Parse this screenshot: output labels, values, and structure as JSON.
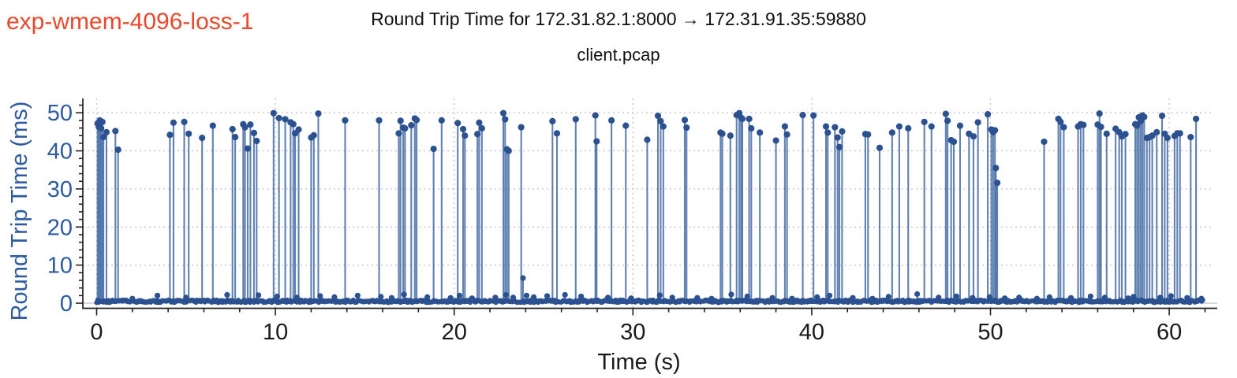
{
  "page": {
    "background": "#ffffff"
  },
  "annotation": {
    "label": "exp-wmem-4096-loss-1",
    "color": "#e8492d"
  },
  "header": {
    "title": "Round Trip Time for 172.31.82.1:8000 → 172.31.91.35:59880",
    "subtitle": "client.pcap"
  },
  "chart_data": {
    "type": "scatter",
    "subtype": "stem",
    "title": "Round Trip Time for 172.31.82.1:8000 → 172.31.91.35:59880",
    "subtitle": "client.pcap",
    "xlabel": "Time (s)",
    "ylabel": "Round Trip Time (ms)",
    "xlim": [
      -0.8,
      62.7
    ],
    "ylim": [
      -1.3,
      53.8
    ],
    "x_ticks": [
      0,
      10,
      20,
      30,
      40,
      50,
      60
    ],
    "y_ticks": [
      0,
      10,
      20,
      30,
      40,
      50
    ],
    "x_minor_step": 2,
    "y_minor_step": 2,
    "grid": true,
    "grid_style": "dotted",
    "legend": "none",
    "colors": {
      "marker": "#2b5190",
      "stem": "#3a61a0",
      "y_axis_text": "#2d5aa2",
      "x_axis_text": "#1a1a1a",
      "grid": "#c6c6c6",
      "spine": "#222222"
    },
    "spikes": [
      [
        0.05,
        47.2
      ],
      [
        0.12,
        46.3
      ],
      [
        0.18,
        48.0
      ],
      [
        0.25,
        45.9
      ],
      [
        0.32,
        47.6
      ],
      [
        0.38,
        43.6
      ],
      [
        0.55,
        44.9
      ],
      [
        1.05,
        45.2
      ],
      [
        1.2,
        40.3
      ],
      [
        4.1,
        44.2
      ],
      [
        4.3,
        47.4
      ],
      [
        4.9,
        47.6
      ],
      [
        5.15,
        44.5
      ],
      [
        5.9,
        43.4
      ],
      [
        6.5,
        46.6
      ],
      [
        7.6,
        45.7
      ],
      [
        7.75,
        43.6
      ],
      [
        8.2,
        47.0
      ],
      [
        8.3,
        46.2
      ],
      [
        8.45,
        40.6
      ],
      [
        8.6,
        46.9
      ],
      [
        8.8,
        44.7
      ],
      [
        8.95,
        42.6
      ],
      [
        9.9,
        49.9
      ],
      [
        10.2,
        48.6
      ],
      [
        10.55,
        48.3
      ],
      [
        10.85,
        47.5
      ],
      [
        11.0,
        47.0
      ],
      [
        11.1,
        44.6
      ],
      [
        11.3,
        45.6
      ],
      [
        12.0,
        43.5
      ],
      [
        12.15,
        44.1
      ],
      [
        12.4,
        49.8
      ],
      [
        13.9,
        48.0
      ],
      [
        15.8,
        48.0
      ],
      [
        16.9,
        44.6
      ],
      [
        17.0,
        47.9
      ],
      [
        17.15,
        46.1
      ],
      [
        17.25,
        45.9
      ],
      [
        17.6,
        46.7
      ],
      [
        17.8,
        48.5
      ],
      [
        17.9,
        48.1
      ],
      [
        18.85,
        40.5
      ],
      [
        19.3,
        48.0
      ],
      [
        20.2,
        47.3
      ],
      [
        20.5,
        45.7
      ],
      [
        20.6,
        44.0
      ],
      [
        21.3,
        44.4
      ],
      [
        21.4,
        47.4
      ],
      [
        21.55,
        45.9
      ],
      [
        22.75,
        49.9
      ],
      [
        22.85,
        48.3
      ],
      [
        22.95,
        40.4
      ],
      [
        23.05,
        40.0
      ],
      [
        23.75,
        46.2
      ],
      [
        25.5,
        47.8
      ],
      [
        25.75,
        44.6
      ],
      [
        26.8,
        48.3
      ],
      [
        27.9,
        49.3
      ],
      [
        27.97,
        42.5
      ],
      [
        28.8,
        48.0
      ],
      [
        29.6,
        46.6
      ],
      [
        30.8,
        42.9
      ],
      [
        31.4,
        49.2
      ],
      [
        31.55,
        47.8
      ],
      [
        31.7,
        46.4
      ],
      [
        32.9,
        48.1
      ],
      [
        33.0,
        46.1
      ],
      [
        34.9,
        44.8
      ],
      [
        35.0,
        44.5
      ],
      [
        35.45,
        44.0
      ],
      [
        35.8,
        49.4
      ],
      [
        35.95,
        49.9
      ],
      [
        36.05,
        48.7
      ],
      [
        36.12,
        48.4
      ],
      [
        36.5,
        48.4
      ],
      [
        36.62,
        45.9
      ],
      [
        37.1,
        44.8
      ],
      [
        38.0,
        42.7
      ],
      [
        38.5,
        46.4
      ],
      [
        38.62,
        44.3
      ],
      [
        39.5,
        49.4
      ],
      [
        40.1,
        49.3
      ],
      [
        40.8,
        46.4
      ],
      [
        40.9,
        44.8
      ],
      [
        41.3,
        46.2
      ],
      [
        41.45,
        43.5
      ],
      [
        41.55,
        41.0
      ],
      [
        41.7,
        45.1
      ],
      [
        43.0,
        44.4
      ],
      [
        43.15,
        44.3
      ],
      [
        43.8,
        40.8
      ],
      [
        44.5,
        44.8
      ],
      [
        44.9,
        46.4
      ],
      [
        45.4,
        45.9
      ],
      [
        46.3,
        47.6
      ],
      [
        46.7,
        46.4
      ],
      [
        47.5,
        49.7
      ],
      [
        47.6,
        47.9
      ],
      [
        47.8,
        42.8
      ],
      [
        47.95,
        42.4
      ],
      [
        48.3,
        46.6
      ],
      [
        48.8,
        44.5
      ],
      [
        49.05,
        43.8
      ],
      [
        49.3,
        47.5
      ],
      [
        49.85,
        49.6
      ],
      [
        50.05,
        45.6
      ],
      [
        50.15,
        44.9
      ],
      [
        50.25,
        45.4
      ],
      [
        50.3,
        35.5
      ],
      [
        50.38,
        31.6
      ],
      [
        53.0,
        42.4
      ],
      [
        53.8,
        48.4
      ],
      [
        53.92,
        47.6
      ],
      [
        54.1,
        46.2
      ],
      [
        54.9,
        46.4
      ],
      [
        55.05,
        47.0
      ],
      [
        55.2,
        46.8
      ],
      [
        56.0,
        46.9
      ],
      [
        56.1,
        49.8
      ],
      [
        56.18,
        46.3
      ],
      [
        56.5,
        44.5
      ],
      [
        57.0,
        45.8
      ],
      [
        57.2,
        44.9
      ],
      [
        57.35,
        43.8
      ],
      [
        57.55,
        44.4
      ],
      [
        58.1,
        47.0
      ],
      [
        58.2,
        46.6
      ],
      [
        58.3,
        48.8
      ],
      [
        58.4,
        47.8
      ],
      [
        58.5,
        49.3
      ],
      [
        58.6,
        48.9
      ],
      [
        58.75,
        43.4
      ],
      [
        58.9,
        43.6
      ],
      [
        59.05,
        44.0
      ],
      [
        59.3,
        44.9
      ],
      [
        59.6,
        49.2
      ],
      [
        59.75,
        44.5
      ],
      [
        59.9,
        43.4
      ],
      [
        60.3,
        43.9
      ],
      [
        60.45,
        44.6
      ],
      [
        60.6,
        44.6
      ],
      [
        61.2,
        43.6
      ],
      [
        61.5,
        48.4
      ]
    ],
    "minor_spikes": [
      [
        2.0,
        1.2
      ],
      [
        3.4,
        2.0
      ],
      [
        5.0,
        1.5
      ],
      [
        7.3,
        2.2
      ],
      [
        9.05,
        2.1
      ],
      [
        10.1,
        1.8
      ],
      [
        11.2,
        1.5
      ],
      [
        12.5,
        1.9
      ],
      [
        13.3,
        1.6
      ],
      [
        14.6,
        2.0
      ],
      [
        15.9,
        1.7
      ],
      [
        16.5,
        1.4
      ],
      [
        17.2,
        2.3
      ],
      [
        18.5,
        1.6
      ],
      [
        19.8,
        1.4
      ],
      [
        20.3,
        2.0
      ],
      [
        21.0,
        1.3
      ],
      [
        22.3,
        1.5
      ],
      [
        22.9,
        2.2
      ],
      [
        23.3,
        1.5
      ],
      [
        23.85,
        6.6
      ],
      [
        24.05,
        2.0
      ],
      [
        24.45,
        1.6
      ],
      [
        25.2,
        1.9
      ],
      [
        26.2,
        2.2
      ],
      [
        27.1,
        1.8
      ],
      [
        28.6,
        1.5
      ],
      [
        29.9,
        1.3
      ],
      [
        31.5,
        2.1
      ],
      [
        32.2,
        1.5
      ],
      [
        33.6,
        1.4
      ],
      [
        34.4,
        1.2
      ],
      [
        35.5,
        2.3
      ],
      [
        36.4,
        1.8
      ],
      [
        37.8,
        1.4
      ],
      [
        38.9,
        1.2
      ],
      [
        40.3,
        1.6
      ],
      [
        41.0,
        2.0
      ],
      [
        42.3,
        1.4
      ],
      [
        43.4,
        1.2
      ],
      [
        44.3,
        1.7
      ],
      [
        45.9,
        2.4
      ],
      [
        47.1,
        1.5
      ],
      [
        48.1,
        1.8
      ],
      [
        49.0,
        1.4
      ],
      [
        49.95,
        1.6
      ],
      [
        50.8,
        1.3
      ],
      [
        51.6,
        1.5
      ],
      [
        52.6,
        1.2
      ],
      [
        53.3,
        1.6
      ],
      [
        54.5,
        1.4
      ],
      [
        55.6,
        1.8
      ],
      [
        56.4,
        1.5
      ],
      [
        57.7,
        1.3
      ],
      [
        58.0,
        1.7
      ],
      [
        59.5,
        1.5
      ],
      [
        60.1,
        1.9
      ],
      [
        61.0,
        1.4
      ],
      [
        61.8,
        1.2
      ]
    ],
    "baseline": {
      "t_start": 0.0,
      "t_end": 61.9,
      "value_ms_min": 0.15,
      "value_ms_max": 0.85,
      "sample_spacing_s": 0.055,
      "description": "dense continuous band of RTT samples near 0 ms along the whole capture"
    }
  }
}
